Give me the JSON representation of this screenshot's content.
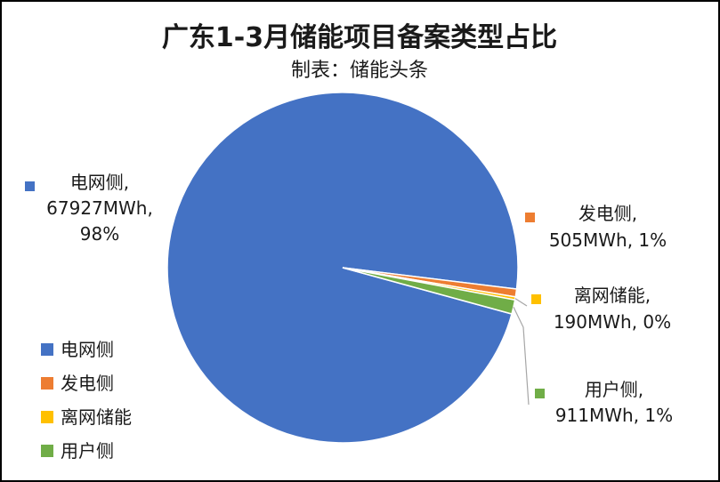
{
  "chart_data": {
    "type": "pie",
    "title": "广东1-3月储能项目备案类型占比",
    "subtitle": "制表：储能头条",
    "unit": "MWh",
    "slices": [
      {
        "name": "电网侧",
        "value": 67927,
        "percent": "98%",
        "color": "#4472C4",
        "label_lines": [
          "电网侧,",
          "67927MWh,",
          "98%"
        ]
      },
      {
        "name": "发电侧",
        "value": 505,
        "percent": "1%",
        "color": "#ED7D31",
        "label_lines": [
          "发电侧,",
          "505MWh, 1%"
        ]
      },
      {
        "name": "离网储能",
        "value": 190,
        "percent": "0%",
        "color": "#FFC000",
        "label_lines": [
          "离网储能,",
          "190MWh, 0%"
        ]
      },
      {
        "name": "用户侧",
        "value": 911,
        "percent": "1%",
        "color": "#70AD47",
        "label_lines": [
          "用户侧,",
          "911MWh, 1%"
        ]
      }
    ],
    "legend": {
      "position": "bottom-left",
      "items": [
        "电网侧",
        "发电侧",
        "离网储能",
        "用户侧"
      ]
    }
  }
}
